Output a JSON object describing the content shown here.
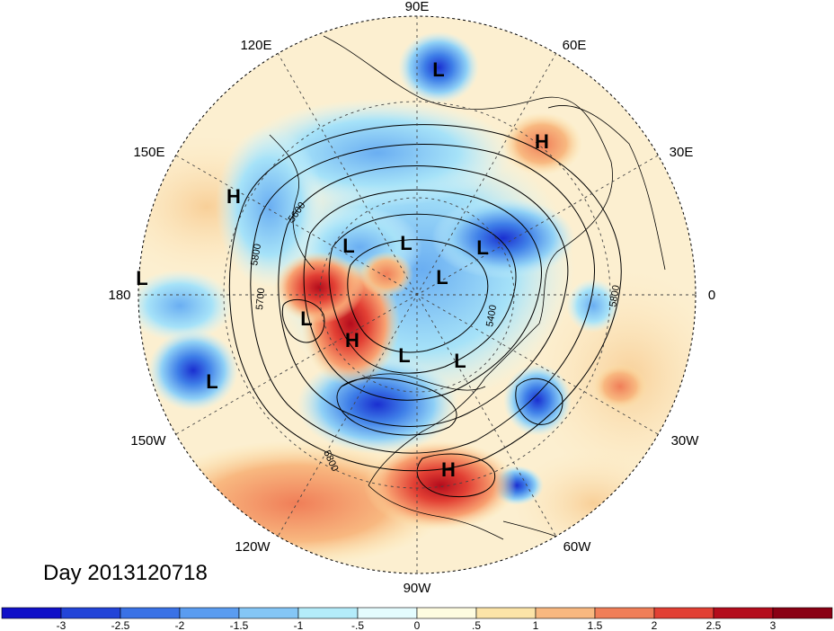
{
  "title": "Day 2013120718",
  "longitude_labels": [
    "90E",
    "60E",
    "30E",
    "0",
    "30W",
    "60W",
    "90W",
    "120W",
    "150W",
    "180",
    "150E",
    "120E"
  ],
  "contour_labels": [
    "5600",
    "5800",
    "5700",
    "5400",
    "5800",
    "5800"
  ],
  "pressure_centers": [
    "L",
    "H",
    "H",
    "L",
    "L",
    "L",
    "L",
    "L",
    "H",
    "L",
    "L",
    "L",
    "H",
    "L"
  ],
  "colorbar": {
    "ticks": [
      "-3",
      "-2.5",
      "-2",
      "-1.5",
      "-1",
      "-.5",
      "0",
      ".5",
      "1",
      "1.5",
      "2",
      "2.5",
      "3"
    ],
    "colors": [
      "#1010c8",
      "#2244d8",
      "#3a72e6",
      "#5a9cf0",
      "#84c6f6",
      "#b4ecfa",
      "#e4fcfe",
      "#fefce0",
      "#fce4a8",
      "#f8b880",
      "#f07e58",
      "#e24034",
      "#b40c1c",
      "#8a0014"
    ]
  },
  "colors": {
    "land_outline": "#000000",
    "grid": "#555555",
    "background": "#ffffff"
  }
}
